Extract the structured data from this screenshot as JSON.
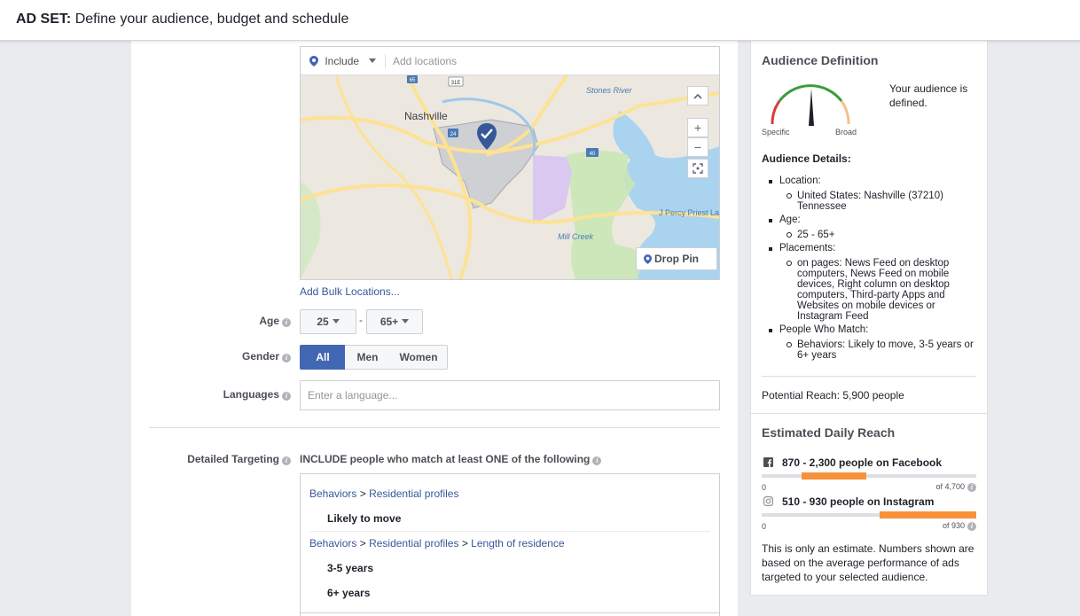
{
  "header": {
    "prefix": "AD SET:",
    "text": "Define your audience, budget and schedule"
  },
  "location": {
    "include_label": "Include",
    "add_placeholder": "Add locations",
    "add_bulk": "Add Bulk Locations...",
    "drop_pin": "Drop Pin",
    "map_labels": {
      "city": "Nashville",
      "stones_river": "Stones River",
      "percy_priest": "J Percy Priest Lake",
      "mill_creek": "Mill Creek",
      "hwy65": "65",
      "hwy31e": "31E",
      "hwy24": "24",
      "hwy40": "40"
    }
  },
  "age": {
    "label": "Age",
    "min": "25",
    "max": "65+"
  },
  "gender": {
    "label": "Gender",
    "options": [
      "All",
      "Men",
      "Women"
    ],
    "selected": "All"
  },
  "languages": {
    "label": "Languages",
    "placeholder": "Enter a language..."
  },
  "detailed_targeting": {
    "label": "Detailed Targeting",
    "include_text": "INCLUDE people who match at least ONE of the following",
    "groups": [
      {
        "path": [
          "Behaviors",
          "Residential profiles"
        ],
        "items": [
          "Likely to move"
        ]
      },
      {
        "path": [
          "Behaviors",
          "Residential profiles",
          "Length of residence"
        ],
        "items": [
          "3-5 years",
          "6+ years"
        ]
      }
    ],
    "separator": ">"
  },
  "audience_definition": {
    "title": "Audience Definition",
    "gauge": {
      "left": "Specific",
      "right": "Broad",
      "level": 0.5
    },
    "status": "Your audience is defined.",
    "details_title": "Audience Details:",
    "details": [
      {
        "label": "Location:",
        "values": [
          "United States: Nashville (37210) Tennessee"
        ]
      },
      {
        "label": "Age:",
        "values": [
          "25 - 65+"
        ]
      },
      {
        "label": "Placements:",
        "values": [
          "on pages: News Feed on desktop computers, News Feed on mobile devices, Right column on desktop computers, Third-party Apps and Websites on mobile devices or Instagram Feed"
        ]
      },
      {
        "label": "People Who Match:",
        "values": [
          "Behaviors: Likely to move, 3-5 years or 6+ years"
        ]
      }
    ],
    "potential_reach": "Potential Reach: 5,900 people"
  },
  "daily_reach": {
    "title": "Estimated Daily Reach",
    "facebook": {
      "text": "870 - 2,300 people on Facebook",
      "min": "0",
      "max": "of 4,700",
      "range": [
        870,
        2300
      ],
      "total": 4700
    },
    "instagram": {
      "text": "510 - 930 people on Instagram",
      "min": "0",
      "max": "of 930",
      "range": [
        510,
        930
      ],
      "total": 930
    },
    "note": "This is only an estimate. Numbers shown are based on the average performance of ads targeted to your selected audience."
  },
  "colors": {
    "accent": "#4267b2",
    "link": "#365899",
    "reach_bar": "#f7923b",
    "gauge_green": "#3d9b3d",
    "gauge_red": "#d93b3b"
  }
}
